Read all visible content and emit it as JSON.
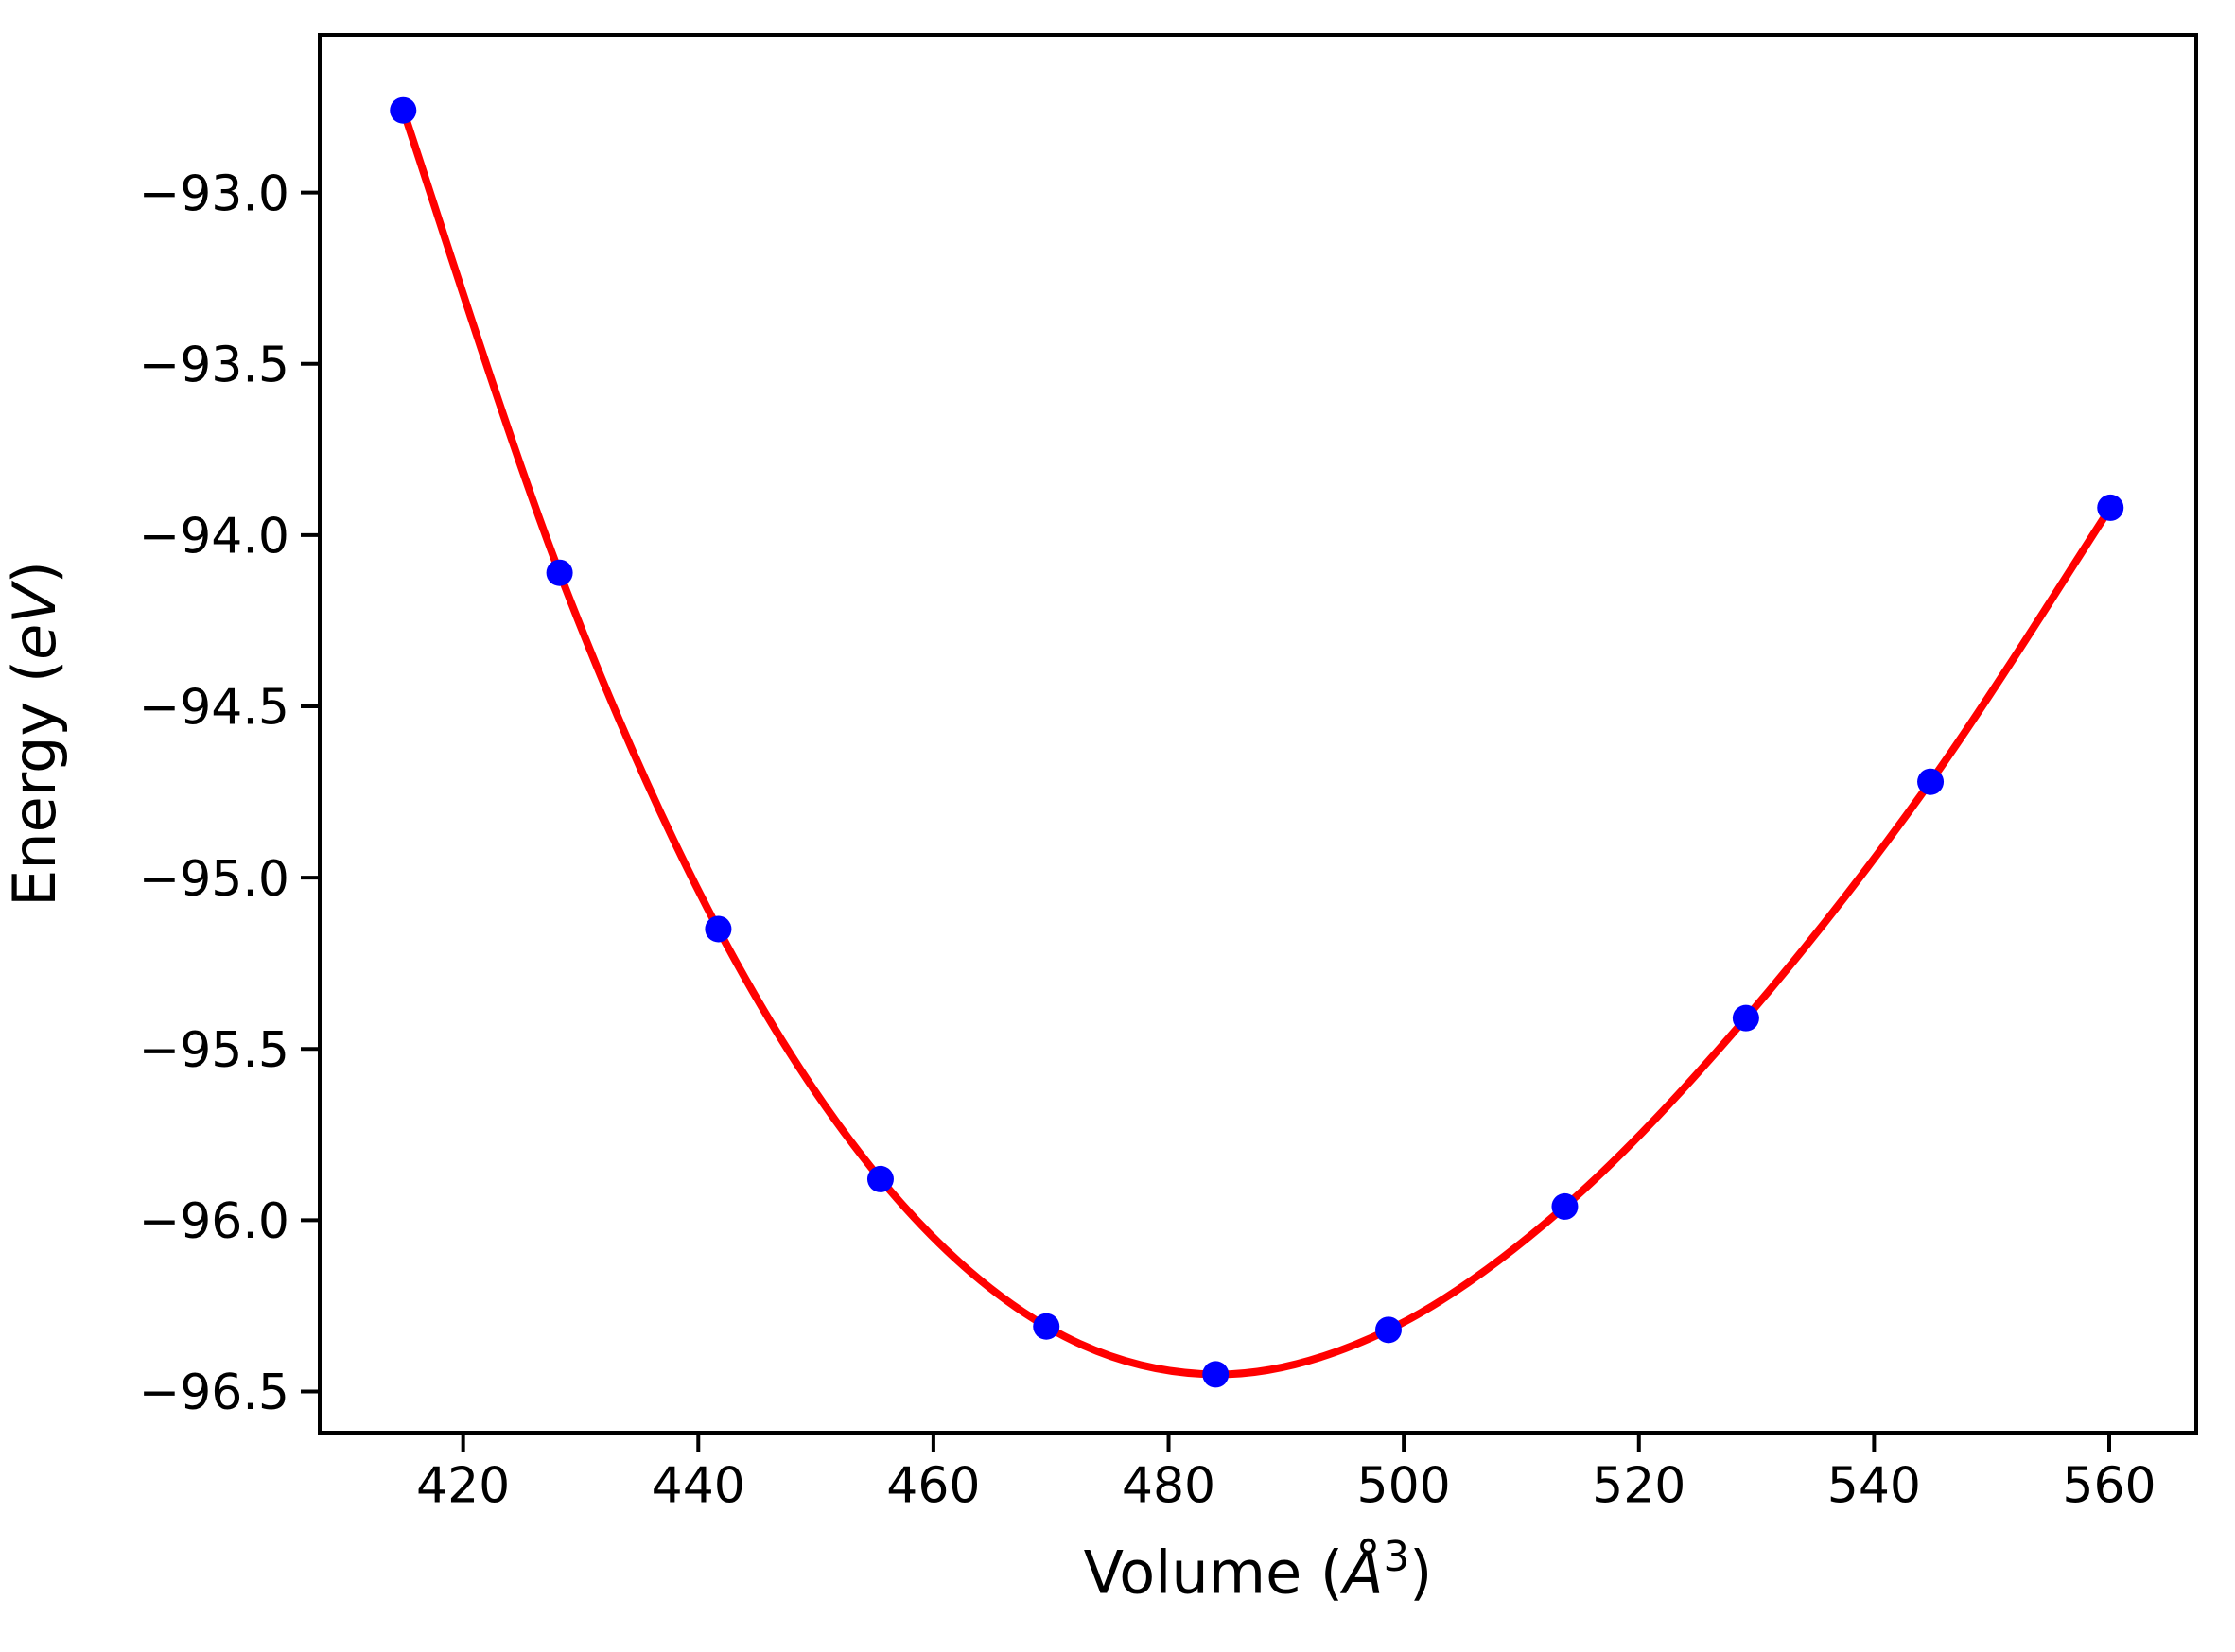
{
  "chart_data": {
    "type": "scatter",
    "title": "",
    "xlabel": {
      "prefix": "Volume (",
      "italic": "Å",
      "superscript": "3",
      "suffix": ")"
    },
    "ylabel": {
      "prefix": "Energy (",
      "italic": "eV",
      "suffix": ")"
    },
    "x_tick_values": [
      420,
      440,
      460,
      480,
      500,
      520,
      540,
      560
    ],
    "x_tick_labels": [
      "420",
      "440",
      "460",
      "480",
      "500",
      "520",
      "540",
      "560"
    ],
    "y_tick_values": [
      -93.0,
      -93.5,
      -94.0,
      -94.5,
      -95.0,
      -95.5,
      -96.0,
      -96.5
    ],
    "y_tick_labels": [
      "−93.0",
      "−93.5",
      "−94.0",
      "−94.5",
      "−95.0",
      "−95.5",
      "−96.0",
      "−96.5"
    ],
    "xlim": [
      407.8,
      567.4
    ],
    "ylim": [
      -96.62,
      -92.54
    ],
    "grid": false,
    "legend": null,
    "series": [
      {
        "name": "eos-fit-curve",
        "type": "line",
        "color": "#ff0000",
        "x": [
          414.9,
          428.2,
          441.7,
          455.5,
          469.6,
          484.0,
          498.7,
          513.7,
          529.1,
          544.8,
          560.1
        ],
        "y": [
          -92.76,
          -94.11,
          -95.15,
          -95.88,
          -96.31,
          -96.45,
          -96.32,
          -95.96,
          -95.41,
          -94.72,
          -93.92
        ]
      },
      {
        "name": "calculated-points",
        "type": "scatter",
        "marker": "circle",
        "color": "#0000ff",
        "x": [
          414.9,
          428.2,
          441.7,
          455.5,
          469.6,
          484.0,
          498.7,
          513.7,
          529.1,
          544.8,
          560.1
        ],
        "y": [
          -92.76,
          -94.11,
          -95.15,
          -95.88,
          -96.31,
          -96.45,
          -96.32,
          -95.96,
          -95.41,
          -94.72,
          -93.92
        ]
      }
    ],
    "axis_color": "#000000",
    "background_color": "#ffffff"
  }
}
